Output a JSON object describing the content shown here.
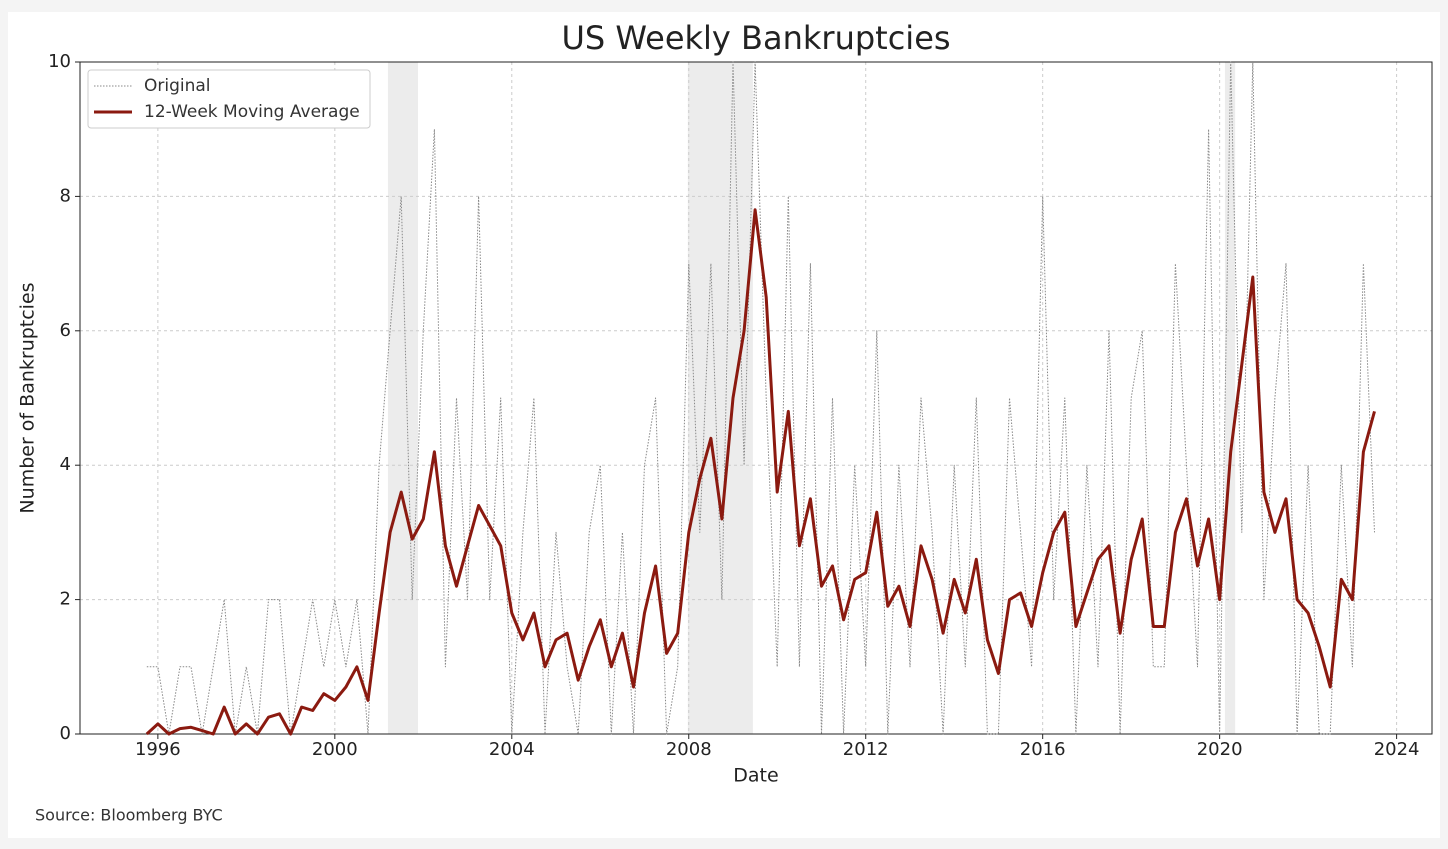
{
  "chart_data": {
    "type": "line",
    "title": "US Weekly Bankruptcies",
    "x_label": "Date",
    "y_label": "Number of Bankruptcies",
    "source": "Source: Bloomberg BYC",
    "xlim": [
      1994.24,
      2024.8
    ],
    "ylim": [
      0,
      10
    ],
    "xticks": [
      1996,
      2000,
      2004,
      2008,
      2012,
      2016,
      2020,
      2024
    ],
    "yticks": [
      0,
      2,
      4,
      6,
      8,
      10
    ],
    "grid": true,
    "legend": "upper left",
    "shaded_regions": [
      [
        2001.2,
        2001.88
      ],
      [
        2007.98,
        2009.45
      ],
      [
        2020.12,
        2020.35
      ]
    ],
    "x": [
      1995.75,
      1996,
      1996.25,
      1996.5,
      1996.75,
      1997,
      1997.25,
      1997.5,
      1997.75,
      1998,
      1998.25,
      1998.5,
      1998.75,
      1999,
      1999.25,
      1999.5,
      1999.75,
      2000,
      2000.25,
      2000.5,
      2000.75,
      2001,
      2001.25,
      2001.5,
      2001.75,
      2002,
      2002.25,
      2002.5,
      2002.75,
      2003,
      2003.25,
      2003.5,
      2003.75,
      2004,
      2004.25,
      2004.5,
      2004.75,
      2005,
      2005.25,
      2005.5,
      2005.75,
      2006,
      2006.25,
      2006.5,
      2006.75,
      2007,
      2007.25,
      2007.5,
      2007.75,
      2008,
      2008.25,
      2008.5,
      2008.75,
      2009,
      2009.25,
      2009.5,
      2009.75,
      2010,
      2010.25,
      2010.5,
      2010.75,
      2011,
      2011.25,
      2011.5,
      2011.75,
      2012,
      2012.25,
      2012.5,
      2012.75,
      2013,
      2013.25,
      2013.5,
      2013.75,
      2014,
      2014.25,
      2014.5,
      2014.75,
      2015,
      2015.25,
      2015.5,
      2015.75,
      2016,
      2016.25,
      2016.5,
      2016.75,
      2017,
      2017.25,
      2017.5,
      2017.75,
      2018,
      2018.25,
      2018.5,
      2018.75,
      2019,
      2019.25,
      2019.5,
      2019.75,
      2020,
      2020.25,
      2020.5,
      2020.75,
      2021,
      2021.25,
      2021.5,
      2021.75,
      2022,
      2022.25,
      2022.5,
      2022.75,
      2023,
      2023.25,
      2023.5
    ],
    "series": [
      {
        "name": "Original",
        "color": "#888888",
        "style": "dotted",
        "values": [
          1,
          1,
          0,
          1,
          1,
          0,
          1,
          2,
          0,
          1,
          0,
          2,
          2,
          0,
          1,
          2,
          1,
          2,
          1,
          2,
          0,
          4,
          6,
          8,
          2,
          6,
          9,
          1,
          5,
          2,
          8,
          2,
          5,
          0,
          3,
          5,
          0,
          3,
          1,
          0,
          3,
          4,
          0,
          3,
          0,
          4,
          5,
          0,
          1,
          7,
          3,
          7,
          2,
          10,
          4,
          10,
          5,
          1,
          8,
          1,
          7,
          0,
          5,
          0,
          4,
          1,
          6,
          0,
          4,
          1,
          5,
          3,
          0,
          4,
          1,
          5,
          0,
          0,
          5,
          3,
          1,
          8,
          2,
          5,
          0,
          4,
          1,
          6,
          0,
          5,
          6,
          1,
          1,
          7,
          4,
          1,
          9,
          0,
          10,
          3,
          10,
          2,
          5,
          7,
          0,
          4,
          0,
          0,
          4,
          1,
          7,
          3
        ]
      },
      {
        "name": "12-Week Moving Average",
        "color": "#8b1a10",
        "style": "solid",
        "values": [
          0,
          0.15,
          0,
          0.08,
          0.1,
          0.05,
          0,
          0.4,
          0,
          0.15,
          0,
          0.25,
          0.3,
          0,
          0.4,
          0.35,
          0.6,
          0.5,
          0.7,
          1.0,
          0.5,
          1.8,
          3.0,
          3.6,
          2.9,
          3.2,
          4.2,
          2.8,
          2.2,
          2.8,
          3.4,
          3.1,
          2.8,
          1.8,
          1.4,
          1.8,
          1.0,
          1.4,
          1.5,
          0.8,
          1.3,
          1.7,
          1.0,
          1.5,
          0.7,
          1.8,
          2.5,
          1.2,
          1.5,
          3.0,
          3.8,
          4.4,
          3.2,
          5.0,
          6.0,
          7.8,
          6.5,
          3.6,
          4.8,
          2.8,
          3.5,
          2.2,
          2.5,
          1.7,
          2.3,
          2.4,
          3.3,
          1.9,
          2.2,
          1.6,
          2.8,
          2.3,
          1.5,
          2.3,
          1.8,
          2.6,
          1.4,
          0.9,
          2.0,
          2.1,
          1.6,
          2.4,
          3.0,
          3.3,
          1.6,
          2.1,
          2.6,
          2.8,
          1.5,
          2.6,
          3.2,
          1.6,
          1.6,
          3.0,
          3.5,
          2.5,
          3.2,
          2.0,
          4.2,
          5.5,
          6.8,
          3.6,
          3.0,
          3.5,
          2.0,
          1.8,
          1.3,
          0.7,
          2.3,
          2.0,
          4.2,
          4.8
        ]
      }
    ]
  }
}
